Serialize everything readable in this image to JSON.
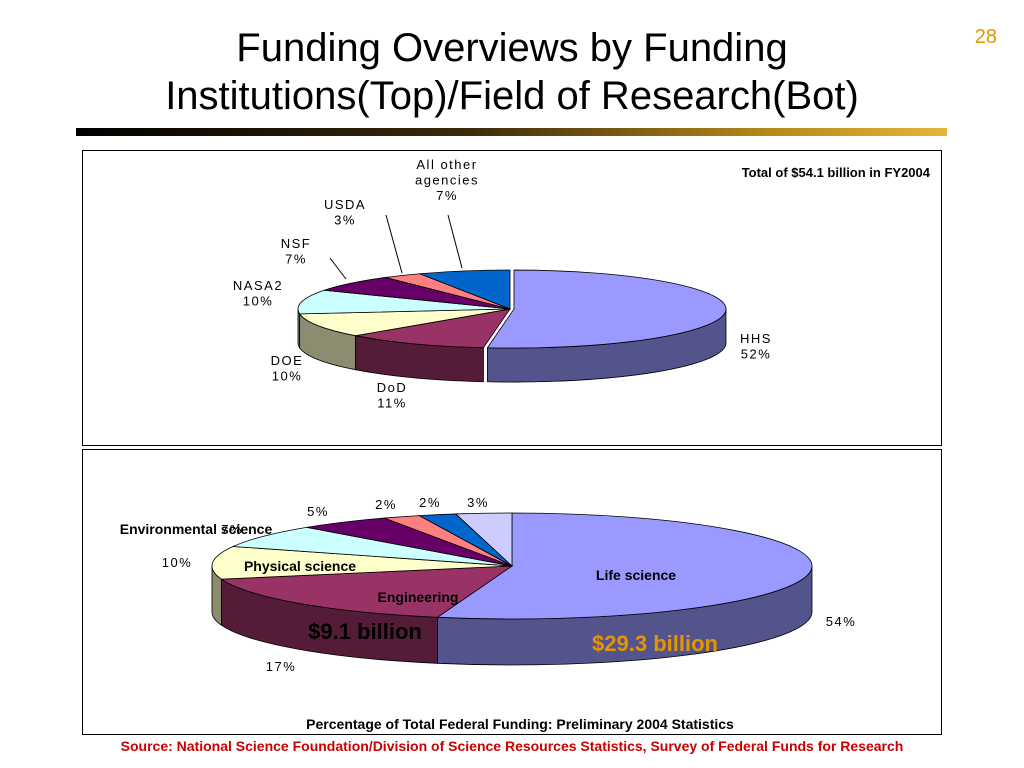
{
  "slide": {
    "title_line1": "Funding Overviews by Funding",
    "title_line2": "Institutions(Top)/Field of Research(Bot)",
    "page_number": "28",
    "source": "Source: National Science Foundation/Division of Science Resources Statistics, Survey of Federal Funds for Research"
  },
  "colors": {
    "title_rule": [
      "#000000",
      "#b88a1a",
      "#e2b53b"
    ],
    "source_text": "#cc0000",
    "page_number": "#e69500",
    "highlight_value": "#e69500"
  },
  "chart_data": [
    {
      "type": "pie",
      "style": "3d-exploded-ellipse",
      "annotation": "Total of $54.1 billion in FY2004",
      "slices": [
        {
          "label": "HHS",
          "value": 52,
          "value_label": "52%",
          "color": "#9999ff"
        },
        {
          "label": "DoD",
          "value": 11,
          "value_label": "11%",
          "color": "#993366"
        },
        {
          "label": "DOE",
          "value": 10,
          "value_label": "10%",
          "color": "#ffffcc"
        },
        {
          "label": "NASA2",
          "value": 10,
          "value_label": "10%",
          "color": "#ccffff"
        },
        {
          "label": "NSF",
          "value": 7,
          "value_label": "7%",
          "color": "#660066"
        },
        {
          "label": "USDA",
          "value": 3,
          "value_label": "3%",
          "color": "#ff8080"
        },
        {
          "label": "All other agencies",
          "value": 7,
          "value_label": "7%",
          "color": "#0066cc"
        }
      ]
    },
    {
      "type": "pie",
      "style": "3d-ellipse",
      "caption": "Percentage of Total Federal Funding: Preliminary 2004 Statistics",
      "slices": [
        {
          "label": "Life science",
          "value": 54,
          "value_label": "54%",
          "amount": "$29.3 billion",
          "color": "#9999ff"
        },
        {
          "label": "Engineering",
          "value": 17,
          "value_label": "17%",
          "amount": "$9.1 billion",
          "color": "#993366"
        },
        {
          "label": "Physical science",
          "value": 10,
          "value_label": "10%",
          "color": "#ffffcc"
        },
        {
          "label": "Environmental science",
          "value": 7,
          "value_label": "7%",
          "color": "#ccffff"
        },
        {
          "label": "",
          "value": 5,
          "value_label": "5%",
          "color": "#660066"
        },
        {
          "label": "",
          "value": 2,
          "value_label": "2%",
          "color": "#ff8080"
        },
        {
          "label": "",
          "value": 2,
          "value_label": "2%",
          "color": "#0066cc"
        },
        {
          "label": "",
          "value": 3,
          "value_label": "3%",
          "color": "#ccccff"
        }
      ]
    }
  ]
}
